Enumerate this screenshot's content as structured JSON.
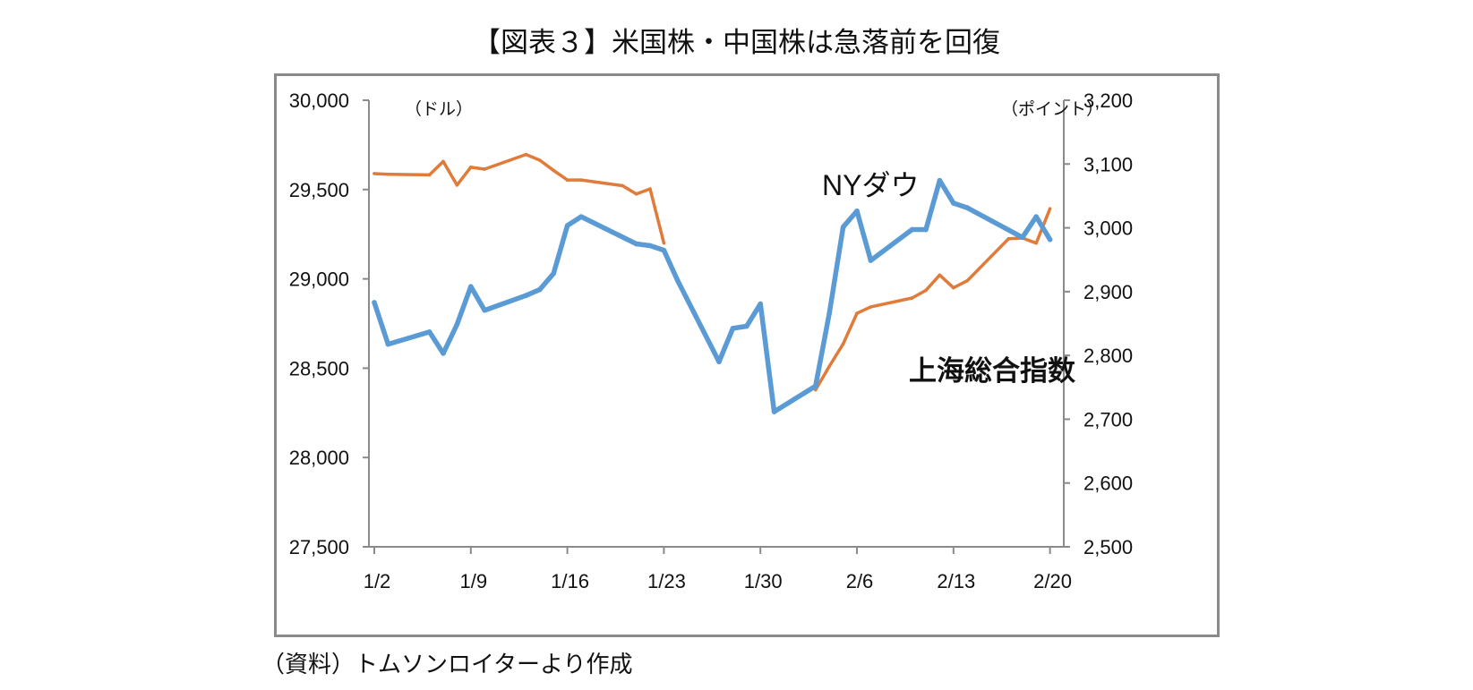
{
  "title": "【図表３】米国株・中国株は急落前を回復",
  "source": "（資料）トムソンロイターより作成",
  "chart_data": {
    "type": "line",
    "left_unit": "（ドル）",
    "right_unit": "（ポイント）",
    "x_ticks": [
      "1/2",
      "1/9",
      "1/16",
      "1/23",
      "1/30",
      "2/6",
      "2/13",
      "2/20"
    ],
    "y_left_ticks": [
      "30,000",
      "29,500",
      "29,000",
      "28,500",
      "28,000",
      "27,500"
    ],
    "y_right_ticks": [
      "3,200",
      "3,100",
      "3,000",
      "2,900",
      "2,800",
      "2,700",
      "2,600",
      "2,500"
    ],
    "ylim_left": [
      27500,
      30000
    ],
    "ylim_right": [
      2500,
      3200
    ],
    "x_start": "2020-01-02",
    "x_end": "2020-02-21",
    "grid": false,
    "series": [
      {
        "name": "NYダウ",
        "axis": "left",
        "color": "#5b9bd5",
        "points": [
          [
            "2020-01-02",
            28868
          ],
          [
            "2020-01-03",
            28634
          ],
          [
            "2020-01-06",
            28703
          ],
          [
            "2020-01-07",
            28583
          ],
          [
            "2020-01-08",
            28745
          ],
          [
            "2020-01-09",
            28957
          ],
          [
            "2020-01-10",
            28824
          ],
          [
            "2020-01-13",
            28907
          ],
          [
            "2020-01-14",
            28940
          ],
          [
            "2020-01-15",
            29030
          ],
          [
            "2020-01-16",
            29298
          ],
          [
            "2020-01-17",
            29348
          ],
          [
            "2020-01-21",
            29196
          ],
          [
            "2020-01-22",
            29186
          ],
          [
            "2020-01-23",
            29160
          ],
          [
            "2020-01-24",
            28990
          ],
          [
            "2020-01-27",
            28536
          ],
          [
            "2020-01-28",
            28723
          ],
          [
            "2020-01-29",
            28735
          ],
          [
            "2020-01-30",
            28860
          ],
          [
            "2020-01-31",
            28256
          ],
          [
            "2020-02-03",
            28400
          ],
          [
            "2020-02-04",
            28808
          ],
          [
            "2020-02-05",
            29290
          ],
          [
            "2020-02-06",
            29380
          ],
          [
            "2020-02-07",
            29103
          ],
          [
            "2020-02-10",
            29276
          ],
          [
            "2020-02-11",
            29276
          ],
          [
            "2020-02-12",
            29551
          ],
          [
            "2020-02-13",
            29424
          ],
          [
            "2020-02-14",
            29398
          ],
          [
            "2020-02-18",
            29232
          ],
          [
            "2020-02-19",
            29348
          ],
          [
            "2020-02-20",
            29220
          ]
        ]
      },
      {
        "name": "上海総合指数",
        "axis": "right",
        "color": "#e07b39",
        "points": [
          [
            "2020-01-02",
            3085
          ],
          [
            "2020-01-03",
            3084
          ],
          [
            "2020-01-06",
            3083
          ],
          [
            "2020-01-07",
            3104
          ],
          [
            "2020-01-08",
            3067
          ],
          [
            "2020-01-09",
            3095
          ],
          [
            "2020-01-10",
            3092
          ],
          [
            "2020-01-13",
            3115
          ],
          [
            "2020-01-14",
            3106
          ],
          [
            "2020-01-15",
            3090
          ],
          [
            "2020-01-16",
            3075
          ],
          [
            "2020-01-17",
            3075
          ],
          [
            "2020-01-20",
            3066
          ],
          [
            "2020-01-21",
            3053
          ],
          [
            "2020-01-22",
            3061
          ],
          [
            "2020-01-23",
            2976
          ],
          [
            "2020-02-03",
            2746
          ],
          [
            "2020-02-04",
            2783
          ],
          [
            "2020-02-05",
            2818
          ],
          [
            "2020-02-06",
            2866
          ],
          [
            "2020-02-07",
            2876
          ],
          [
            "2020-02-10",
            2890
          ],
          [
            "2020-02-11",
            2902
          ],
          [
            "2020-02-12",
            2926
          ],
          [
            "2020-02-13",
            2906
          ],
          [
            "2020-02-14",
            2917
          ],
          [
            "2020-02-17",
            2983
          ],
          [
            "2020-02-18",
            2984
          ],
          [
            "2020-02-19",
            2976
          ],
          [
            "2020-02-20",
            3030
          ]
        ]
      }
    ]
  }
}
